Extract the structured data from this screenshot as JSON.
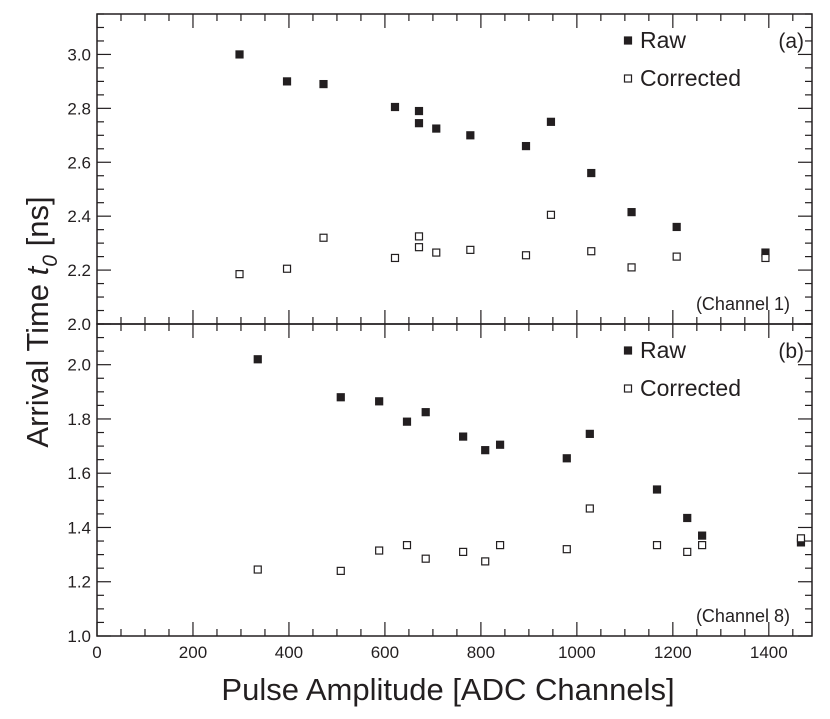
{
  "figure": {
    "ylabel_main": "Arrival Time ",
    "ylabel_symbol": "t",
    "ylabel_sub": "0",
    "ylabel_unit": " [ns]",
    "xlabel": "Pulse Amplitude [ADC Channels]"
  },
  "colors": {
    "ink": "#231f20",
    "raw_fill": "#231f20",
    "corrected_fill": "#ffffff"
  },
  "chart_data": [
    {
      "type": "scatter",
      "panel_tag": "(a)",
      "annotation": "(Channel 1)",
      "xlim": [
        0,
        1490
      ],
      "ylim": [
        2.0,
        3.15
      ],
      "x_ticks": [
        0,
        200,
        400,
        600,
        800,
        1000,
        1200,
        1400
      ],
      "y_ticks": [
        2.0,
        2.2,
        2.4,
        2.6,
        2.8,
        3.0
      ],
      "y_tick_labels": [
        "2.0",
        "2.2",
        "2.4",
        "2.6",
        "2.8",
        "3.0"
      ],
      "show_x_tick_labels": false,
      "legend_position": "top-right",
      "grid": false,
      "series": [
        {
          "name": "Raw",
          "marker": "filled-square",
          "x": [
            297,
            396,
            472,
            621,
            671,
            671,
            707,
            778,
            894,
            946,
            1030,
            1114,
            1208,
            1393
          ],
          "y": [
            3.0,
            2.9,
            2.89,
            2.805,
            2.79,
            2.745,
            2.725,
            2.7,
            2.66,
            2.75,
            2.56,
            2.415,
            2.36,
            2.265
          ]
        },
        {
          "name": "Corrected",
          "marker": "open-square",
          "x": [
            297,
            396,
            472,
            621,
            671,
            671,
            707,
            778,
            894,
            946,
            1030,
            1114,
            1208,
            1393
          ],
          "y": [
            2.185,
            2.205,
            2.32,
            2.245,
            2.325,
            2.285,
            2.265,
            2.275,
            2.255,
            2.405,
            2.27,
            2.21,
            2.25,
            2.245
          ]
        }
      ]
    },
    {
      "type": "scatter",
      "panel_tag": "(b)",
      "annotation": "(Channel 8)",
      "xlim": [
        0,
        1490
      ],
      "ylim": [
        1.0,
        2.15
      ],
      "x_ticks": [
        0,
        200,
        400,
        600,
        800,
        1000,
        1200,
        1400
      ],
      "x_tick_labels": [
        "0",
        "200",
        "400",
        "600",
        "800",
        "1000",
        "1200",
        "1400"
      ],
      "y_ticks": [
        1.0,
        1.2,
        1.4,
        1.6,
        1.8,
        2.0
      ],
      "y_tick_labels": [
        "1.0",
        "1.2",
        "1.4",
        "1.6",
        "1.8",
        "2.0"
      ],
      "show_x_tick_labels": true,
      "legend_position": "top-right",
      "grid": false,
      "series": [
        {
          "name": "Raw",
          "marker": "filled-square",
          "x": [
            335,
            508,
            588,
            646,
            685,
            763,
            809,
            840,
            979,
            1027,
            1167,
            1230,
            1261,
            1467
          ],
          "y": [
            2.02,
            1.88,
            1.865,
            1.79,
            1.825,
            1.735,
            1.685,
            1.705,
            1.655,
            1.745,
            1.54,
            1.435,
            1.37,
            1.345
          ]
        },
        {
          "name": "Corrected",
          "marker": "open-square",
          "x": [
            335,
            508,
            588,
            646,
            685,
            763,
            809,
            840,
            979,
            1027,
            1167,
            1230,
            1261,
            1467
          ],
          "y": [
            1.245,
            1.24,
            1.315,
            1.335,
            1.285,
            1.31,
            1.275,
            1.335,
            1.32,
            1.47,
            1.335,
            1.31,
            1.335,
            1.36
          ]
        }
      ]
    }
  ]
}
